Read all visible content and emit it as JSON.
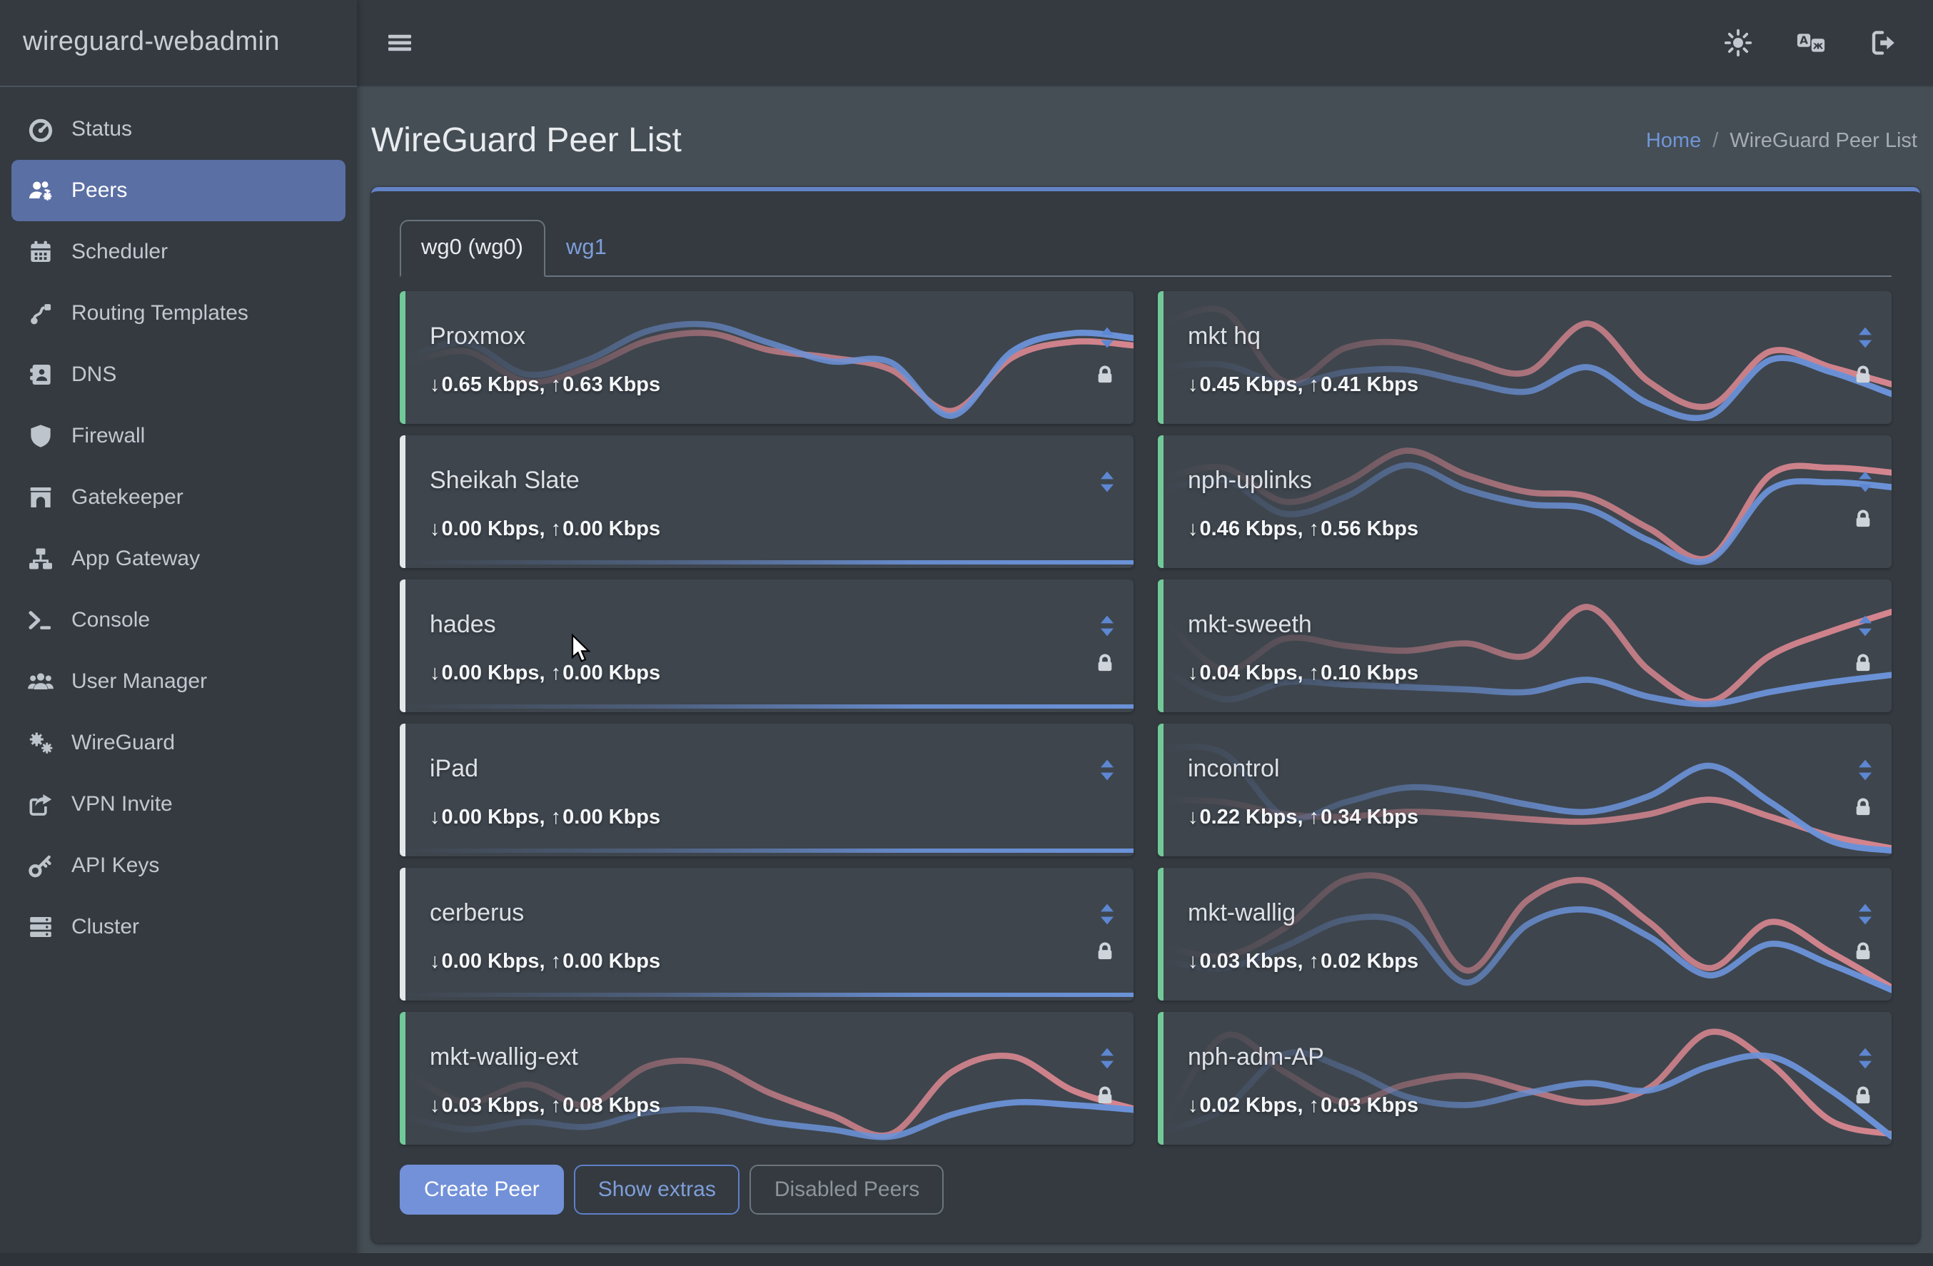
{
  "brand": {
    "title": "wireguard-webadmin"
  },
  "topbar": {
    "icons": [
      {
        "name": "theme-sun-icon"
      },
      {
        "name": "language-icon"
      },
      {
        "name": "logout-icon"
      }
    ]
  },
  "sidebar": {
    "items": [
      {
        "label": "Status",
        "icon": "gauge-icon",
        "active": false
      },
      {
        "label": "Peers",
        "icon": "users-gear-icon",
        "active": true
      },
      {
        "label": "Scheduler",
        "icon": "calendar-icon",
        "active": false
      },
      {
        "label": "Routing Templates",
        "icon": "route-icon",
        "active": false
      },
      {
        "label": "DNS",
        "icon": "address-book-icon",
        "active": false
      },
      {
        "label": "Firewall",
        "icon": "shield-icon",
        "active": false
      },
      {
        "label": "Gatekeeper",
        "icon": "archway-icon",
        "active": false
      },
      {
        "label": "App Gateway",
        "icon": "sitemap-icon",
        "active": false
      },
      {
        "label": "Console",
        "icon": "terminal-icon",
        "active": false
      },
      {
        "label": "User Manager",
        "icon": "users-icon",
        "active": false
      },
      {
        "label": "WireGuard",
        "icon": "gears-icon",
        "active": false
      },
      {
        "label": "VPN Invite",
        "icon": "share-icon",
        "active": false
      },
      {
        "label": "API Keys",
        "icon": "key-icon",
        "active": false
      },
      {
        "label": "Cluster",
        "icon": "server-icon",
        "active": false
      }
    ]
  },
  "page": {
    "title": "WireGuard Peer List",
    "breadcrumb": {
      "home": "Home",
      "separator": "/",
      "current": "WireGuard Peer List"
    }
  },
  "tabs": [
    {
      "label": "wg0 (wg0)",
      "active": true
    },
    {
      "label": "wg1",
      "active": false
    }
  ],
  "glyphs": {
    "down_arrow": "↓",
    "up_arrow": "↑",
    "stats_separator": ", "
  },
  "peers": [
    {
      "name": "Proxmox",
      "down": "0.65 Kbps",
      "up": "0.63 Kbps",
      "online": true,
      "locked": true,
      "spark": {
        "down": [
          0.5,
          0.62,
          0.36,
          0.48,
          0.72,
          0.77,
          0.62,
          0.47,
          0.46,
          0.02,
          0.55,
          0.7,
          0.66
        ],
        "up": [
          0.45,
          0.55,
          0.3,
          0.42,
          0.64,
          0.7,
          0.56,
          0.5,
          0.4,
          0.06,
          0.5,
          0.63,
          0.6
        ]
      }
    },
    {
      "name": "mkt hq",
      "down": "0.45 Kbps",
      "up": "0.41 Kbps",
      "online": true,
      "locked": true,
      "spark": {
        "down": [
          0.42,
          0.44,
          0.28,
          0.38,
          0.4,
          0.3,
          0.22,
          0.42,
          0.12,
          0.02,
          0.48,
          0.38,
          0.2
        ],
        "up": [
          0.78,
          0.88,
          0.3,
          0.58,
          0.62,
          0.48,
          0.38,
          0.78,
          0.3,
          0.1,
          0.55,
          0.42,
          0.28
        ]
      }
    },
    {
      "name": "Sheikah Slate",
      "down": "0.00 Kbps",
      "up": "0.00 Kbps",
      "online": false,
      "locked": false,
      "spark": {
        "down": [
          0,
          0,
          0,
          0,
          0,
          0,
          0,
          0,
          0,
          0,
          0,
          0,
          0
        ],
        "up": [
          0,
          0,
          0,
          0,
          0,
          0,
          0,
          0,
          0,
          0,
          0,
          0,
          0
        ]
      }
    },
    {
      "name": "nph-uplinks",
      "down": "0.46 Kbps",
      "up": "0.56 Kbps",
      "online": true,
      "locked": true,
      "spark": {
        "down": [
          0.6,
          0.68,
          0.4,
          0.54,
          0.8,
          0.6,
          0.48,
          0.44,
          0.18,
          0.02,
          0.6,
          0.66,
          0.62
        ],
        "up": [
          0.7,
          0.78,
          0.5,
          0.66,
          0.92,
          0.72,
          0.58,
          0.54,
          0.28,
          0.04,
          0.72,
          0.78,
          0.74
        ]
      }
    },
    {
      "name": "hades",
      "down": "0.00 Kbps",
      "up": "0.00 Kbps",
      "online": false,
      "locked": true,
      "spark": {
        "down": [
          0,
          0,
          0,
          0,
          0,
          0,
          0,
          0,
          0,
          0,
          0,
          0,
          0
        ],
        "up": [
          0,
          0,
          0,
          0,
          0,
          0,
          0,
          0,
          0,
          0,
          0,
          0,
          0
        ]
      }
    },
    {
      "name": "mkt-sweeth",
      "down": "0.04 Kbps",
      "up": "0.10 Kbps",
      "online": true,
      "locked": true,
      "spark": {
        "down": [
          0.3,
          0.06,
          0.2,
          0.18,
          0.16,
          0.14,
          0.12,
          0.22,
          0.08,
          0.02,
          0.12,
          0.2,
          0.26
        ],
        "up": [
          0.72,
          0.3,
          0.56,
          0.5,
          0.46,
          0.52,
          0.42,
          0.82,
          0.3,
          0.04,
          0.42,
          0.62,
          0.78
        ]
      }
    },
    {
      "name": "iPad",
      "down": "0.00 Kbps",
      "up": "0.00 Kbps",
      "online": false,
      "locked": false,
      "spark": {
        "down": [
          0,
          0,
          0,
          0,
          0,
          0,
          0,
          0,
          0,
          0,
          0,
          0,
          0
        ],
        "up": [
          0,
          0,
          0,
          0,
          0,
          0,
          0,
          0,
          0,
          0,
          0,
          0,
          0
        ]
      }
    },
    {
      "name": "incontrol",
      "down": "0.22 Kbps",
      "up": "0.34 Kbps",
      "online": true,
      "locked": true,
      "spark": {
        "down": [
          0.85,
          0.8,
          0.28,
          0.4,
          0.52,
          0.48,
          0.38,
          0.32,
          0.45,
          0.7,
          0.4,
          0.08,
          0.0
        ],
        "up": [
          0.42,
          0.4,
          0.3,
          0.28,
          0.32,
          0.3,
          0.26,
          0.24,
          0.3,
          0.42,
          0.28,
          0.12,
          0.02
        ]
      }
    },
    {
      "name": "cerberus",
      "down": "0.00 Kbps",
      "up": "0.00 Kbps",
      "online": false,
      "locked": true,
      "spark": {
        "down": [
          0,
          0,
          0,
          0,
          0,
          0,
          0,
          0,
          0,
          0,
          0,
          0,
          0
        ],
        "up": [
          0,
          0,
          0,
          0,
          0,
          0,
          0,
          0,
          0,
          0,
          0,
          0,
          0
        ]
      }
    },
    {
      "name": "mkt-wallig",
      "down": "0.03 Kbps",
      "up": "0.02 Kbps",
      "online": true,
      "locked": true,
      "spark": {
        "down": [
          0.28,
          0.22,
          0.4,
          0.62,
          0.58,
          0.1,
          0.58,
          0.7,
          0.48,
          0.16,
          0.42,
          0.25,
          0.04
        ],
        "up": [
          0.4,
          0.32,
          0.55,
          0.95,
          0.88,
          0.2,
          0.78,
          0.94,
          0.6,
          0.22,
          0.6,
          0.35,
          0.06
        ]
      }
    },
    {
      "name": "mkt-wallig-ext",
      "down": "0.03 Kbps",
      "up": "0.08 Kbps",
      "online": true,
      "locked": true,
      "spark": {
        "down": [
          0.18,
          0.08,
          0.14,
          0.1,
          0.22,
          0.24,
          0.14,
          0.08,
          0.02,
          0.2,
          0.3,
          0.28,
          0.24
        ],
        "up": [
          0.55,
          0.3,
          0.45,
          0.28,
          0.6,
          0.62,
          0.38,
          0.2,
          0.04,
          0.55,
          0.68,
          0.4,
          0.25
        ]
      }
    },
    {
      "name": "nph-adm-AP",
      "down": "0.02 Kbps",
      "up": "0.03 Kbps",
      "online": true,
      "locked": true,
      "spark": {
        "down": [
          0.06,
          0.25,
          0.7,
          0.58,
          0.35,
          0.28,
          0.38,
          0.46,
          0.4,
          0.6,
          0.68,
          0.4,
          0.02
        ],
        "up": [
          0.12,
          0.85,
          0.55,
          0.3,
          0.45,
          0.52,
          0.4,
          0.3,
          0.42,
          0.88,
          0.62,
          0.15,
          0.04
        ]
      }
    }
  ],
  "actions": {
    "create_peer": "Create Peer",
    "show_extras": "Show extras",
    "disabled_peers": "Disabled Peers"
  },
  "colors": {
    "accent_blue": "#6383c6",
    "link_blue": "#7e9ed9",
    "online_green": "#71c998",
    "offline_gray": "#e4e7ea",
    "spark_download": "#6b92d8",
    "spark_upload": "#d5858e",
    "active_item_bg": "#5a6fa4",
    "primary_button": "#7291d9",
    "sidebar_bg": "#343a40",
    "page_bg": "#454d55"
  }
}
